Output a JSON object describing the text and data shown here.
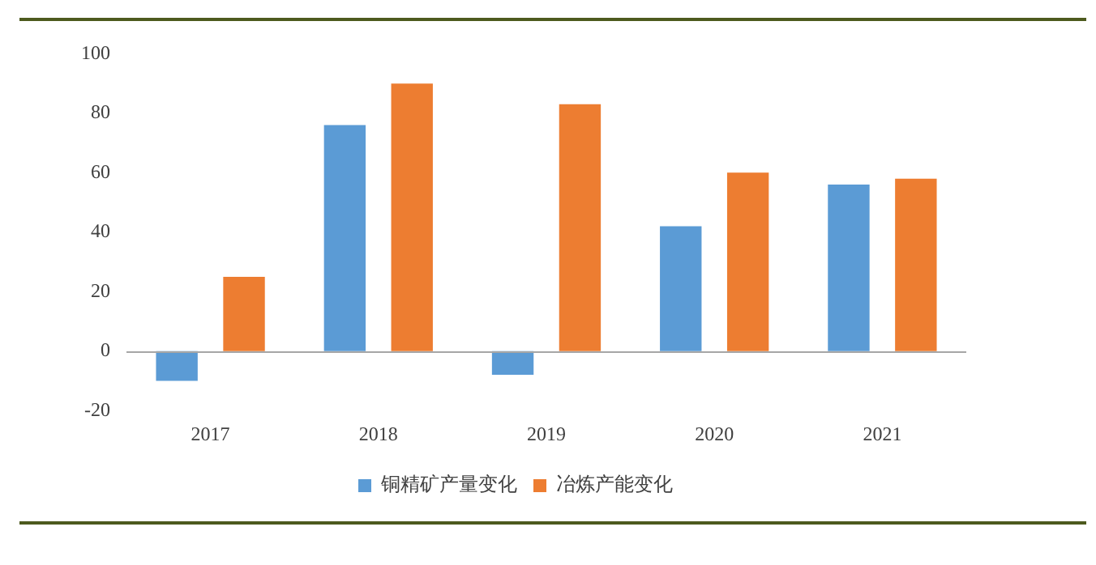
{
  "chart_data": {
    "type": "bar",
    "categories": [
      "2017",
      "2018",
      "2019",
      "2020",
      "2021"
    ],
    "series": [
      {
        "name": "铜精矿产量变化",
        "color": "#5b9bd5",
        "values": [
          -10,
          76,
          -8,
          42,
          56
        ]
      },
      {
        "name": "冶炼产能变化",
        "color": "#ed7d31",
        "values": [
          25,
          90,
          83,
          60,
          58
        ]
      }
    ],
    "ylim": [
      -20,
      100
    ],
    "yticks": [
      -20,
      0,
      20,
      40,
      60,
      80,
      100
    ],
    "grid": false,
    "legend": "bottom",
    "ref_lines": [
      {
        "axis": "y",
        "value": 0,
        "color": "#a6a6a6"
      }
    ]
  }
}
